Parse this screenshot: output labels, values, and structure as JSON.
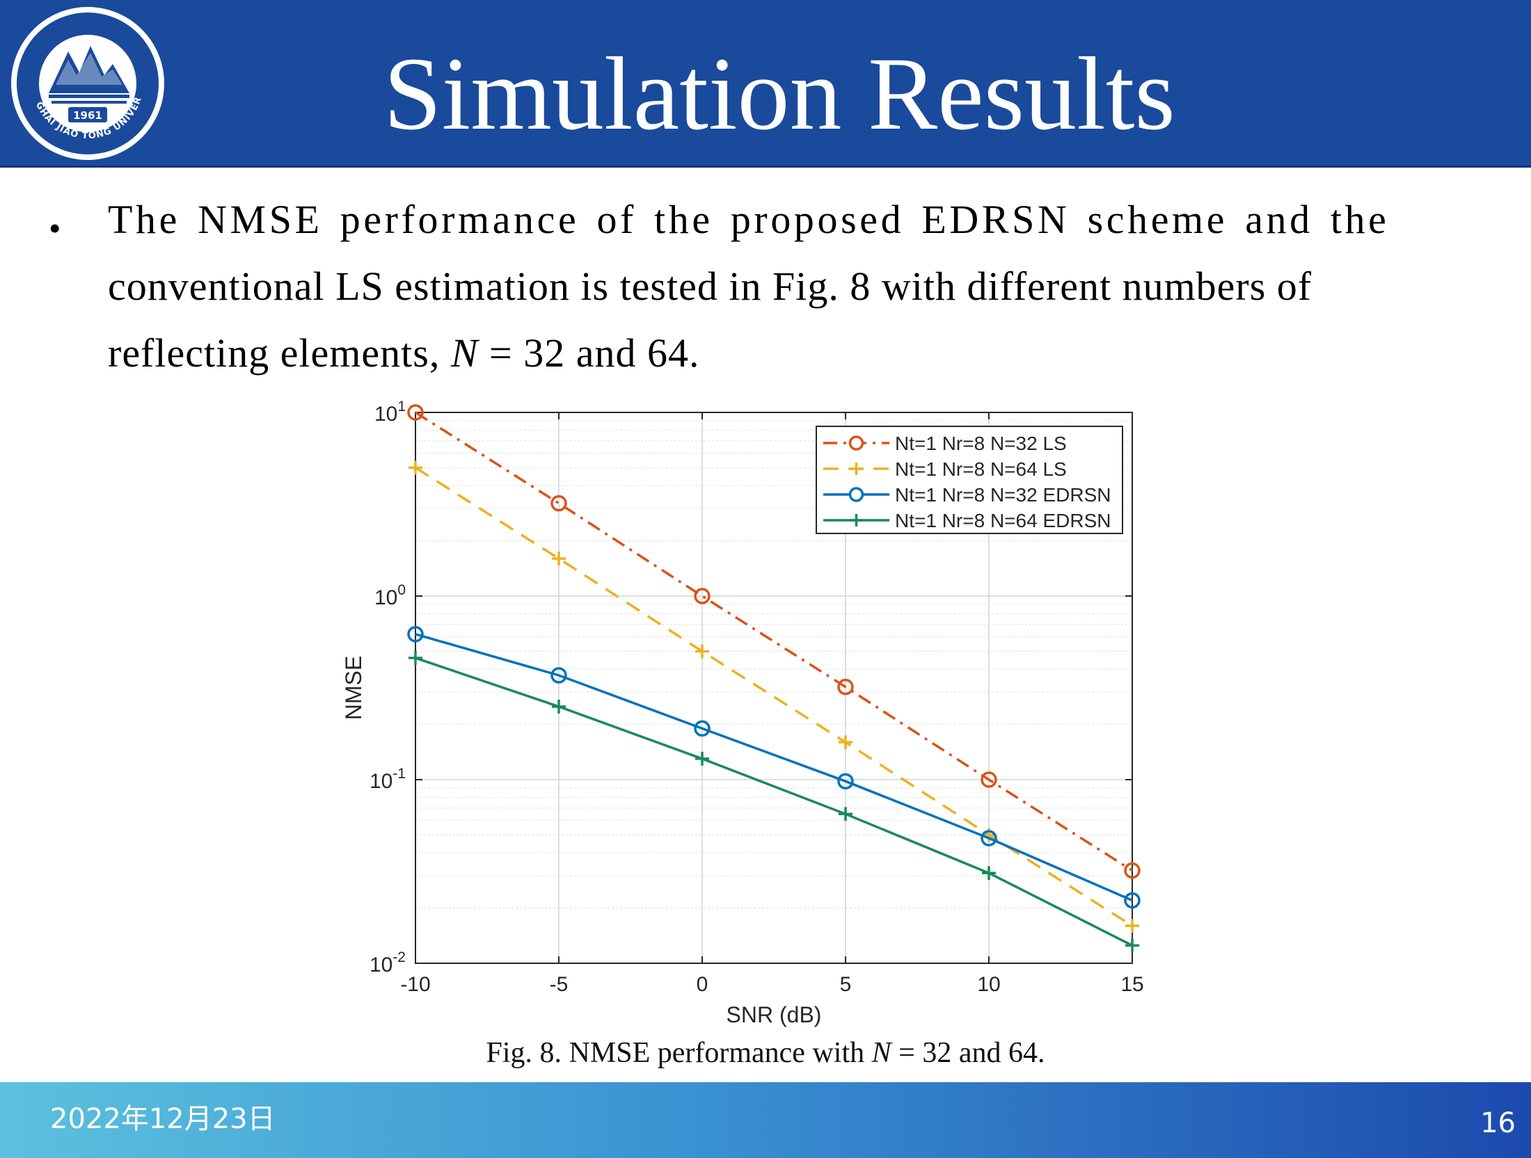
{
  "slide": {
    "title": "Simulation Results",
    "logo_year": "1961",
    "logo_ring_text": "SHANGHAI JIAO TONG UNIVERSITY",
    "bullet_symbol": "•",
    "bullet_line1": "The NMSE performance of the proposed EDRSN scheme and the",
    "bullet_line2": "conventional LS estimation is tested in Fig. 8 with different numbers of",
    "bullet_line3_pre": "reflecting elements, ",
    "bullet_line3_var": "N",
    "bullet_line3_post": " = 32 and 64.",
    "caption_pre": "Fig. 8.   NMSE performance with ",
    "caption_var": "N",
    "caption_post": " = 32 and 64.",
    "footer_date": "2022年12月23日",
    "page_number": "16"
  },
  "colors": {
    "header": "#1a4a9c",
    "footer_start": "#5bc1de",
    "footer_end": "#1c4aad"
  },
  "chart_data": {
    "type": "line",
    "y_scale": "log",
    "x": [
      -10,
      -5,
      0,
      5,
      10,
      15
    ],
    "xlim": [
      -10,
      15
    ],
    "ylim": [
      0.01,
      10
    ],
    "xlabel": "SNR (dB)",
    "ylabel": "NMSE",
    "x_ticks": [
      "-10",
      "-5",
      "0",
      "5",
      "10",
      "15"
    ],
    "y_ticks": [
      {
        "value": 10,
        "base": "10",
        "exp": "1"
      },
      {
        "value": 1,
        "base": "10",
        "exp": "0"
      },
      {
        "value": 0.1,
        "base": "10",
        "exp": "-1"
      },
      {
        "value": 0.01,
        "base": "10",
        "exp": "-2"
      }
    ],
    "grid": true,
    "legend_position": "top-right",
    "series": [
      {
        "name": "Nt=1 Nr=8 N=32 LS",
        "color": "#d95319",
        "dash": "dashdot",
        "marker": "circle",
        "values": [
          10,
          3.2,
          1.0,
          0.32,
          0.1,
          0.032
        ]
      },
      {
        "name": "Nt=1 Nr=8 N=64 LS",
        "color": "#edb120",
        "dash": "dashed",
        "marker": "plus",
        "values": [
          5.0,
          1.6,
          0.5,
          0.16,
          0.05,
          0.016
        ]
      },
      {
        "name": "Nt=1 Nr=8 N=32 EDRSN",
        "color": "#0072bd",
        "dash": "solid",
        "marker": "circle",
        "values": [
          0.62,
          0.37,
          0.19,
          0.098,
          0.048,
          0.022
        ]
      },
      {
        "name": "Nt=1 Nr=8 N=64 EDRSN",
        "color": "#1a8a5a",
        "dash": "solid",
        "marker": "plus",
        "values": [
          0.46,
          0.25,
          0.13,
          0.065,
          0.031,
          0.0125
        ]
      }
    ]
  }
}
